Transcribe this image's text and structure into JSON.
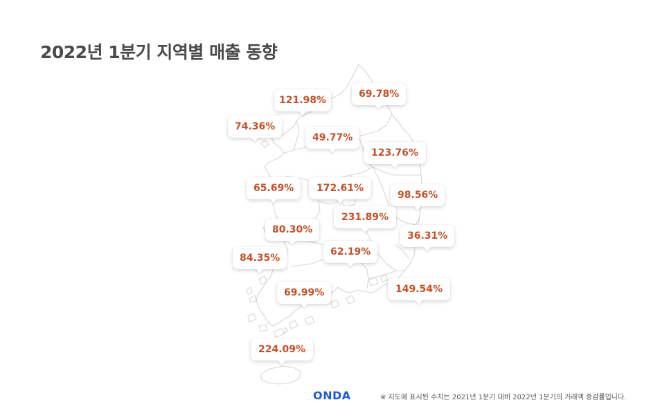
{
  "title": "2022년 1분기 지역별 매출 동향",
  "regions": [
    {
      "value": "121.98%"
    },
    {
      "value": "69.78%"
    },
    {
      "value": "74.36%"
    },
    {
      "value": "49.77%"
    },
    {
      "value": "123.76%"
    },
    {
      "value": "65.69%"
    },
    {
      "value": "172.61%"
    },
    {
      "value": "98.56%"
    },
    {
      "value": "231.89%"
    },
    {
      "value": "80.30%"
    },
    {
      "value": "36.31%"
    },
    {
      "value": "62.19%"
    },
    {
      "value": "84.35%"
    },
    {
      "value": "149.54%"
    },
    {
      "value": "69.99%"
    },
    {
      "value": "224.09%"
    }
  ],
  "logo": "ONDA",
  "footnote": "※ 지도에 표시된 수치는 2021년 1분기 대비 2022년 1분기의 거래액 증감률입니다.",
  "colors": {
    "value_text": "#c4512a",
    "title_text": "#4a4a4a",
    "logo": "#1f5bd9",
    "map_outline": "#d9d9d9"
  }
}
